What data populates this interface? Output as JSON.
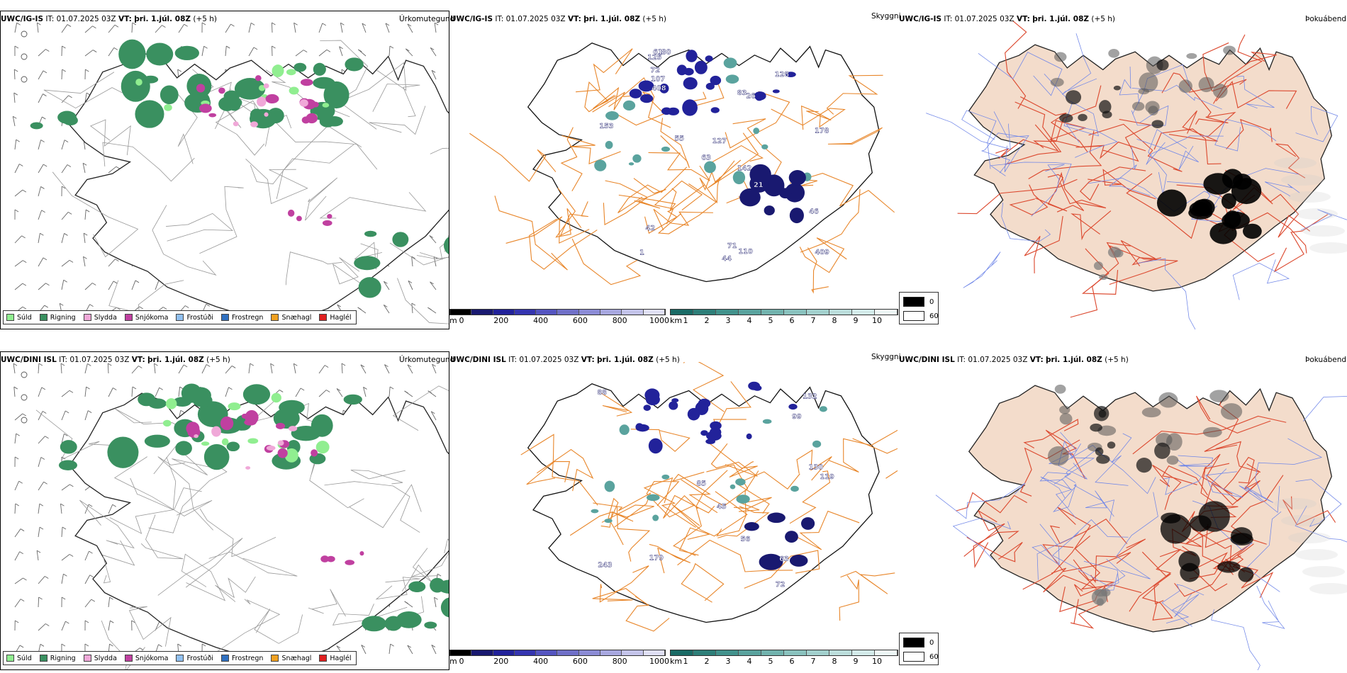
{
  "rows": [
    {
      "model": "UWC/IG-IS",
      "it_label": "IT:",
      "it_value": "01.07.2025 03Z",
      "vt_label": "VT:",
      "vt_value": "þri. 1.júl. 08Z",
      "lead": "(+5 h)",
      "precip_title": "Úrkomutegund",
      "vis_title": "Skyggni",
      "fog_title": "Þokuábendi",
      "vis_labels": [
        "1",
        "26",
        "21",
        "125",
        "42",
        "80",
        "61",
        "72",
        "63",
        "83",
        "153",
        "127",
        "110",
        "409",
        "128",
        "142",
        "408",
        "71",
        "178",
        "55",
        "107",
        "46",
        "44"
      ]
    },
    {
      "model": "UWC/DINI ISL",
      "it_label": "IT:",
      "it_value": "01.07.2025 03Z",
      "vt_label": "VT:",
      "vt_value": "þri. 1.júl. 08Z",
      "lead": "(+5 h)",
      "precip_title": "Úrkomutegund",
      "vis_title": "Skyggni",
      "fog_title": "Þokuábendi",
      "vis_labels": [
        "179",
        "85",
        "56",
        "72",
        "243",
        "132",
        "99",
        "119",
        "130",
        "63",
        "45",
        "88"
      ]
    }
  ],
  "precip_legend": [
    {
      "label": "Súld",
      "color": "#90ee90"
    },
    {
      "label": "Rigning",
      "color": "#3a9060"
    },
    {
      "label": "Slydda",
      "color": "#f0a8d8"
    },
    {
      "label": "Snjókoma",
      "color": "#c040a0"
    },
    {
      "label": "Frostúði",
      "color": "#90c0f0"
    },
    {
      "label": "Frostregn",
      "color": "#3070c0"
    },
    {
      "label": "Snæhagl",
      "color": "#f0a020"
    },
    {
      "label": "Haglél",
      "color": "#e02020"
    }
  ],
  "height_bar": {
    "unit": "m",
    "ticks": [
      "0",
      "200",
      "400",
      "600",
      "800",
      "1000"
    ],
    "colors": [
      "#000000",
      "#191970",
      "#22229a",
      "#3535b0",
      "#5555c0",
      "#7070c8",
      "#8c8cd6",
      "#a8a8e0",
      "#c4c4ea",
      "#e0e0f5"
    ]
  },
  "vis_bar": {
    "unit": "km",
    "ticks": [
      "1",
      "2",
      "3",
      "4",
      "5",
      "6",
      "7",
      "8",
      "9",
      "10"
    ],
    "colors": [
      "#1a6b66",
      "#2e7f79",
      "#42928c",
      "#5aa39e",
      "#72b3ae",
      "#8ac2be",
      "#a3d0cd",
      "#bcdedc",
      "#d4ebea",
      "#edf7f6"
    ]
  },
  "fog_legend": [
    {
      "label": "0",
      "color": "#000000"
    },
    {
      "label": "60",
      "color": "#ffffff"
    }
  ],
  "colors": {
    "land_fog": "#f3dccb",
    "road_orange": "#e8862a",
    "road_red": "#dc4a30",
    "river_blue": "#6f86e8",
    "rain_green": "#3a9060"
  }
}
